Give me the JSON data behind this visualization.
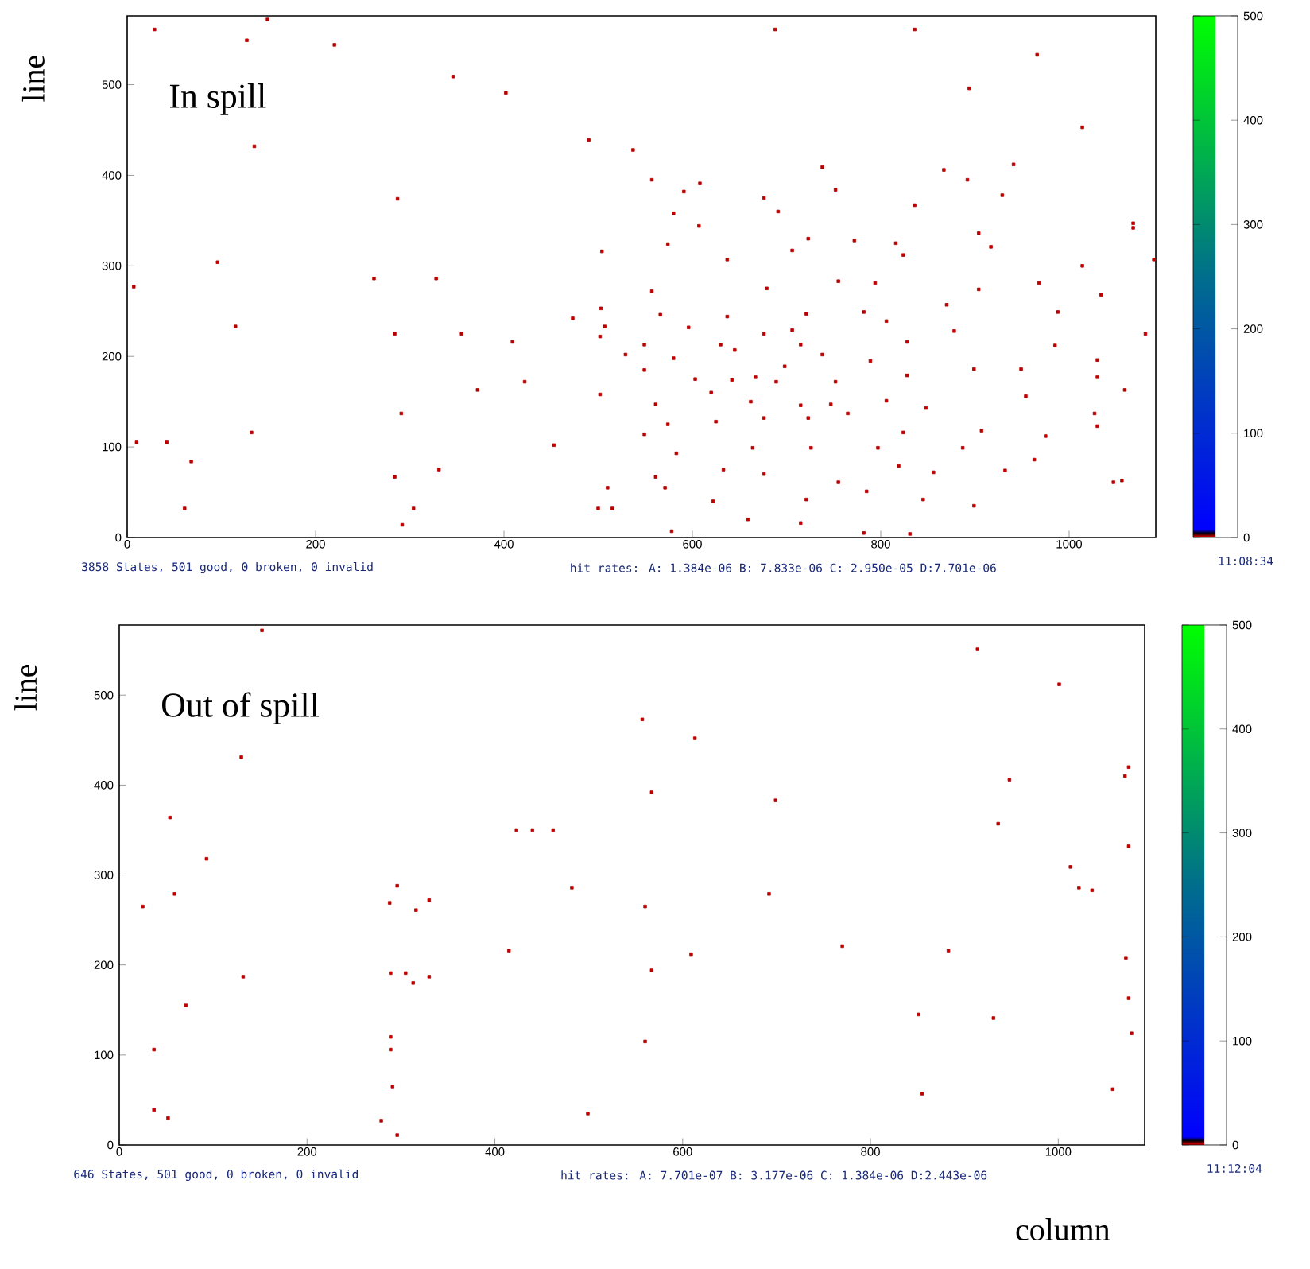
{
  "chart_data": [
    {
      "type": "scatter",
      "title": "In spill",
      "ylabel": "line",
      "marker": "square",
      "xlim": [
        0,
        1092
      ],
      "ylim": [
        0,
        576
      ],
      "xticks": [
        0,
        200,
        400,
        600,
        800,
        1000
      ],
      "yticks": [
        0,
        100,
        200,
        300,
        400,
        500
      ],
      "clim": [
        0,
        500
      ],
      "cticks": [
        0,
        100,
        200,
        300,
        400,
        500
      ],
      "x": [
        557,
        608,
        738,
        867,
        892,
        941,
        676,
        752,
        836,
        929,
        580,
        691,
        607,
        772,
        904,
        504,
        574,
        723,
        816,
        1068,
        637,
        706,
        824,
        917,
        1014,
        1090,
        557,
        679,
        755,
        794,
        904,
        968,
        1034,
        503,
        566,
        637,
        721,
        782,
        870,
        988,
        507,
        596,
        676,
        706,
        806,
        878,
        502,
        549,
        630,
        715,
        828,
        985,
        580,
        645,
        698,
        738,
        789,
        949,
        1030,
        529,
        549,
        603,
        642,
        667,
        689,
        752,
        828,
        899,
        1030,
        1059,
        502,
        561,
        620,
        662,
        715,
        747,
        806,
        848,
        954,
        574,
        625,
        676,
        723,
        765,
        824,
        907,
        975,
        1027,
        549,
        583,
        664,
        726,
        797,
        887,
        963,
        561,
        633,
        676,
        755,
        819,
        856,
        932,
        1047,
        510,
        571,
        622,
        721,
        785,
        845,
        899,
        659,
        715,
        782,
        831,
        578,
        515,
        29,
        127,
        149,
        220,
        135,
        346,
        402,
        490,
        537,
        591,
        688,
        836,
        894,
        966,
        1014,
        1068,
        1030,
        1056,
        1081,
        10,
        42,
        61,
        96,
        115,
        68,
        132,
        7,
        287,
        284,
        291,
        284,
        292,
        262,
        328,
        331,
        355,
        422,
        409,
        473,
        453,
        500,
        372,
        304
      ],
      "values": [
        395,
        391,
        409,
        406,
        395,
        412,
        375,
        384,
        367,
        378,
        358,
        360,
        344,
        328,
        336,
        316,
        324,
        330,
        325,
        342,
        307,
        317,
        312,
        321,
        300,
        307,
        272,
        275,
        283,
        281,
        274,
        281,
        268,
        253,
        246,
        244,
        247,
        249,
        257,
        249,
        233,
        232,
        225,
        229,
        239,
        228,
        222,
        213,
        213,
        213,
        216,
        212,
        198,
        207,
        189,
        202,
        195,
        186,
        196,
        202,
        185,
        175,
        174,
        177,
        172,
        172,
        179,
        186,
        177,
        163,
        158,
        147,
        160,
        150,
        146,
        147,
        151,
        143,
        156,
        125,
        128,
        132,
        132,
        137,
        116,
        118,
        112,
        137,
        114,
        93,
        99,
        99,
        99,
        99,
        86,
        67,
        75,
        70,
        61,
        79,
        72,
        74,
        61,
        55,
        55,
        40,
        42,
        51,
        42,
        35,
        20,
        16,
        5,
        4,
        7,
        32,
        561,
        549,
        572,
        544,
        432,
        509,
        491,
        439,
        428,
        382,
        561,
        561,
        496,
        533,
        453,
        347,
        123,
        63,
        225,
        105,
        105,
        32,
        304,
        233,
        84,
        116,
        277,
        374,
        225,
        137,
        67,
        14,
        286,
        286,
        75,
        225,
        172,
        216,
        242,
        102,
        32,
        163,
        32
      ],
      "cvalues": [
        1,
        1,
        1,
        1,
        1,
        1,
        1,
        1,
        1,
        1,
        1,
        1,
        1,
        1,
        1,
        1,
        1,
        1,
        1,
        1,
        1,
        1,
        1,
        1,
        1,
        1,
        1,
        1,
        1,
        1,
        1,
        1,
        1,
        1,
        1,
        1,
        1,
        1,
        1,
        1,
        1,
        1,
        1,
        1,
        1,
        1,
        1,
        1,
        1,
        1,
        1,
        1,
        1,
        1,
        1,
        1,
        1,
        1,
        1,
        1,
        1,
        1,
        1,
        1,
        1,
        1,
        1,
        1,
        1,
        1,
        1,
        1,
        1,
        1,
        1,
        1,
        1,
        1,
        1,
        1,
        1,
        1,
        1,
        1,
        1,
        1,
        1,
        1,
        1,
        1,
        1,
        1,
        1,
        1,
        1,
        1,
        1,
        1,
        1,
        1,
        1,
        1,
        1,
        1,
        1,
        1,
        1,
        1,
        1,
        1,
        1,
        1,
        1,
        1,
        1,
        1,
        1,
        1,
        1,
        1,
        1,
        1,
        1,
        1,
        1,
        1,
        1,
        1,
        1,
        1,
        1,
        1,
        1,
        1,
        1,
        1,
        1,
        1,
        1,
        1,
        1,
        1,
        1,
        1,
        1,
        1,
        1,
        1,
        1,
        1,
        1,
        1,
        1,
        1,
        1,
        1,
        1,
        1,
        1
      ],
      "annotations": [
        "3858 States, 501 good, 0 broken, 0 invalid",
        "hit rates: A: 1.384e-06 B: 7.833e-06 C: 2.950e-05 D:7.701e-06",
        "11:08:34"
      ]
    },
    {
      "type": "scatter",
      "title": "Out of spill",
      "ylabel": "line",
      "xlabel": "column",
      "marker": "square",
      "xlim": [
        0,
        1092
      ],
      "ylim": [
        0,
        578
      ],
      "xticks": [
        0,
        200,
        400,
        600,
        800,
        1000
      ],
      "yticks": [
        0,
        100,
        200,
        300,
        400,
        500
      ],
      "clim": [
        0,
        500
      ],
      "cticks": [
        0,
        100,
        200,
        300,
        400,
        500
      ],
      "x": [
        152,
        130,
        54,
        93,
        59,
        25,
        132,
        71,
        37,
        37,
        52,
        288,
        296,
        316,
        330,
        289,
        305,
        313,
        330,
        289,
        289,
        291,
        296,
        279,
        423,
        440,
        462,
        415,
        482,
        499,
        557,
        567,
        560,
        567,
        560,
        609,
        613,
        692,
        699,
        770,
        851,
        883,
        914,
        931,
        948,
        936,
        1001,
        1013,
        1022,
        1075,
        1075,
        1072,
        1075,
        1071,
        1058,
        1078,
        1036,
        855
      ],
      "values": [
        572,
        431,
        364,
        318,
        279,
        265,
        187,
        155,
        106,
        39,
        30,
        269,
        288,
        261,
        272,
        191,
        191,
        180,
        187,
        120,
        106,
        65,
        11,
        27,
        350,
        350,
        350,
        216,
        286,
        35,
        473,
        392,
        265,
        194,
        115,
        212,
        452,
        279,
        383,
        221,
        145,
        216,
        551,
        141,
        406,
        357,
        512,
        309,
        286,
        420,
        332,
        208,
        163,
        410,
        62,
        124,
        283,
        57
      ],
      "cvalues": [
        1,
        1,
        1,
        1,
        1,
        1,
        1,
        1,
        1,
        1,
        1,
        1,
        1,
        1,
        1,
        1,
        1,
        1,
        1,
        1,
        1,
        1,
        1,
        1,
        1,
        1,
        1,
        1,
        1,
        1,
        1,
        1,
        1,
        1,
        1,
        1,
        1,
        1,
        1,
        1,
        1,
        1,
        1,
        1,
        1,
        1,
        1,
        1,
        1,
        1,
        1,
        1,
        1,
        1,
        1,
        1,
        1,
        1
      ],
      "annotations": [
        "646 States, 501 good, 0 broken, 0 invalid",
        "hit rates: A: 7.701e-07 B: 3.177e-06 C: 1.384e-06 D:2.443e-06",
        "11:12:04"
      ]
    }
  ]
}
